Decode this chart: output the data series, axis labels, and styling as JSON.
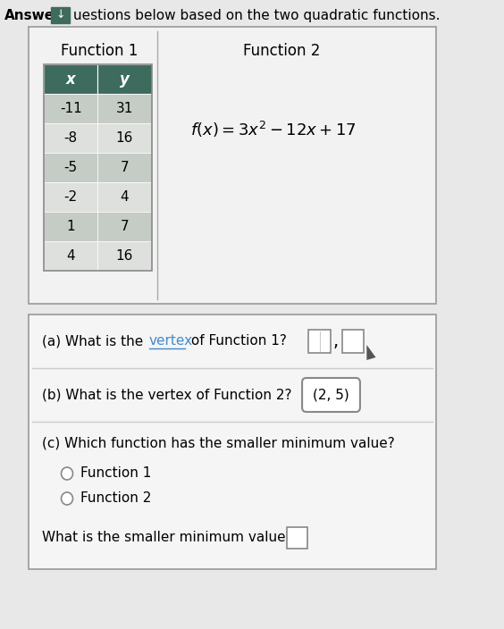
{
  "header_title": "Answer",
  "header_rest": "uestions below based on the two quadratic functions.",
  "func1_label": "Function 1",
  "func2_label": "Function 2",
  "table_headers": [
    "x",
    "y"
  ],
  "table_data": [
    [
      "-11",
      "31"
    ],
    [
      "-8",
      "16"
    ],
    [
      "-5",
      "7"
    ],
    [
      "-2",
      "4"
    ],
    [
      "1",
      "7"
    ],
    [
      "4",
      "16"
    ]
  ],
  "qa_label": "(a) What is the ",
  "qa_vertex": "vertex",
  "qa_rest_a": " of Function 1?",
  "qb_text": "(b) What is the vertex of Function 2?",
  "qb_answer": "(2, 5)",
  "qc_text": "(c) Which function has the smaller minimum value?",
  "radio_opt1": "Function 1",
  "radio_opt2": "Function 2",
  "qd_text": "What is the smaller minimum value?",
  "bg_color": "#e8e8e8",
  "table_header_bg": "#3d6b5e",
  "table_header_fg": "#ffffff",
  "row_colors": [
    "#c5cbc5",
    "#dde0dd"
  ],
  "top_box_bg": "#f2f2f2",
  "bottom_box_bg": "#f5f5f5",
  "box_edge_color": "#999999",
  "vertex_link_color": "#4488cc",
  "divider_color": "#cccccc"
}
